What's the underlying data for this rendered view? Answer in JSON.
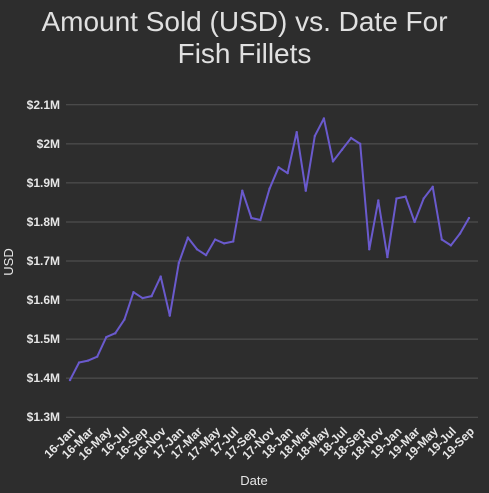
{
  "chart_data": {
    "type": "line",
    "title_line1": "Amount Sold (USD) vs. Date For",
    "title_line2": "Fish Fillets",
    "xlabel": "Date",
    "ylabel": "USD",
    "ylim": [
      1.28,
      2.12
    ],
    "yticks": [
      1.3,
      1.4,
      1.5,
      1.6,
      1.7,
      1.8,
      1.9,
      2.0,
      2.1
    ],
    "ytick_labels": [
      "$1.3M",
      "$1.4M",
      "$1.5M",
      "$1.6M",
      "$1.7M",
      "$1.8M",
      "$1.9M",
      "$2M",
      "$2.1M"
    ],
    "xtick_labels": [
      "16-Jan",
      "16-Mar",
      "16-May",
      "16-Jul",
      "16-Sep",
      "16-Nov",
      "17-Jan",
      "17-Mar",
      "17-May",
      "17-Jul",
      "17-Sep",
      "17-Nov",
      "18-Jan",
      "18-Mar",
      "18-May",
      "18-Jul",
      "18-Sep",
      "18-Nov",
      "19-Jan",
      "19-Mar",
      "19-May",
      "19-Jul",
      "19-Sep"
    ],
    "line_color": "#6a5acd",
    "grid": true,
    "series": [
      {
        "values": [
          1.395,
          1.44,
          1.445,
          1.455,
          1.505,
          1.515,
          1.55,
          1.62,
          1.605,
          1.61,
          1.66,
          1.56,
          1.695,
          1.76,
          1.73,
          1.715,
          1.755,
          1.745,
          1.75,
          1.88,
          1.81,
          1.805,
          1.885,
          1.94,
          1.925,
          2.03,
          1.88,
          2.02,
          2.065,
          1.955,
          1.985,
          2.015,
          2.0,
          1.73,
          1.855,
          1.71,
          1.86,
          1.865,
          1.8,
          1.86,
          1.89,
          1.755,
          1.74,
          1.77,
          1.81
        ]
      }
    ]
  }
}
